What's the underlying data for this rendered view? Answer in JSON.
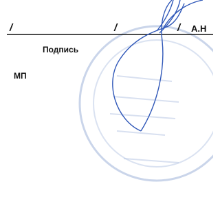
{
  "line_marks": [
    "/",
    "/",
    "/"
  ],
  "name": "А.Н",
  "signature_label": "Подпись",
  "stamp_label": "МП"
}
